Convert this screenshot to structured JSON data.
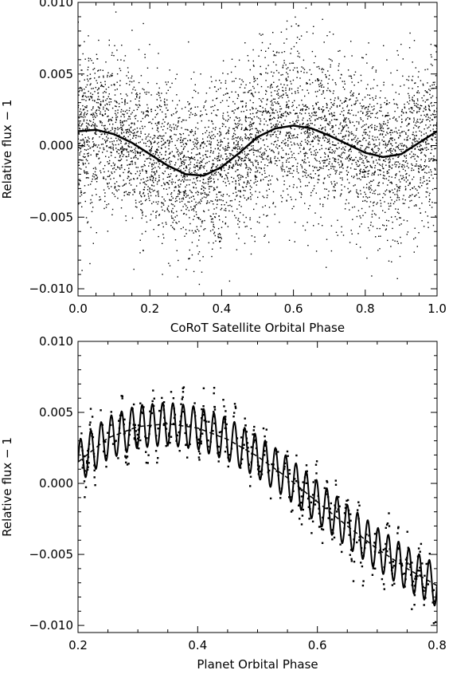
{
  "chart_data": [
    {
      "type": "scatter",
      "title": "",
      "xlabel": "CoRoT Satellite Orbital Phase",
      "ylabel": "Relative flux − 1",
      "xlim": [
        0.0,
        1.0
      ],
      "ylim": [
        -0.0105,
        0.01
      ],
      "xticks": [
        0.0,
        0.2,
        0.4,
        0.6,
        0.8,
        1.0
      ],
      "xtick_labels": [
        "0.0",
        "0.2",
        "0.4",
        "0.6",
        "0.8",
        "1.0"
      ],
      "yticks": [
        -0.01,
        -0.005,
        0.0,
        0.005,
        0.01
      ],
      "ytick_labels": [
        "−0.010",
        "−0.005",
        "0.000",
        "0.005",
        "0.010"
      ],
      "grid": false,
      "legend": "none",
      "colors": {
        "points": "#000000",
        "fit": "#000000"
      },
      "series": [
        {
          "kind": "points",
          "description_count": 5000,
          "scatter_sigma": 0.0028,
          "follows": "fit"
        },
        {
          "kind": "line",
          "style": "solid",
          "x": [
            0.0,
            0.05,
            0.1,
            0.15,
            0.2,
            0.25,
            0.3,
            0.35,
            0.4,
            0.45,
            0.5,
            0.55,
            0.6,
            0.65,
            0.7,
            0.75,
            0.8,
            0.85,
            0.9,
            0.95,
            1.0
          ],
          "y": [
            0.001,
            0.0011,
            0.0008,
            0.0002,
            -0.0006,
            -0.0014,
            -0.002,
            -0.0021,
            -0.0015,
            -0.0005,
            0.0006,
            0.0012,
            0.0014,
            0.0012,
            0.0007,
            0.0001,
            -0.0005,
            -0.0008,
            -0.0006,
            0.0002,
            0.001
          ]
        }
      ]
    },
    {
      "type": "scatter",
      "title": "",
      "xlabel": "Planet Orbital Phase",
      "ylabel": "Relative flux − 1",
      "xlim": [
        0.2,
        0.8
      ],
      "ylim": [
        -0.0105,
        0.01
      ],
      "xticks": [
        0.2,
        0.4,
        0.6,
        0.8
      ],
      "xtick_labels": [
        "0.2",
        "0.4",
        "0.6",
        "0.8"
      ],
      "yticks": [
        -0.01,
        -0.005,
        0.0,
        0.005,
        0.01
      ],
      "ytick_labels": [
        "−0.010",
        "−0.005",
        "0.000",
        "0.005",
        "0.010"
      ],
      "grid": false,
      "legend": "none",
      "colors": {
        "points": "#000000",
        "fit": "#000000",
        "trend": "#000000"
      },
      "series": [
        {
          "kind": "line",
          "style": "dashed",
          "x": [
            0.2,
            0.25,
            0.3,
            0.35,
            0.4,
            0.45,
            0.5,
            0.55,
            0.6,
            0.65,
            0.7,
            0.75,
            0.8
          ],
          "y": [
            0.0015,
            0.0032,
            0.004,
            0.0042,
            0.0039,
            0.0031,
            0.0019,
            0.0004,
            -0.0013,
            -0.003,
            -0.0046,
            -0.006,
            -0.0072
          ]
        },
        {
          "kind": "line",
          "style": "solid",
          "oscillation_amplitude": 0.0015,
          "oscillation_cycles": 35,
          "follows": "dashed trend"
        },
        {
          "kind": "points",
          "description_count": 520,
          "follows": "solid fit"
        }
      ]
    }
  ]
}
